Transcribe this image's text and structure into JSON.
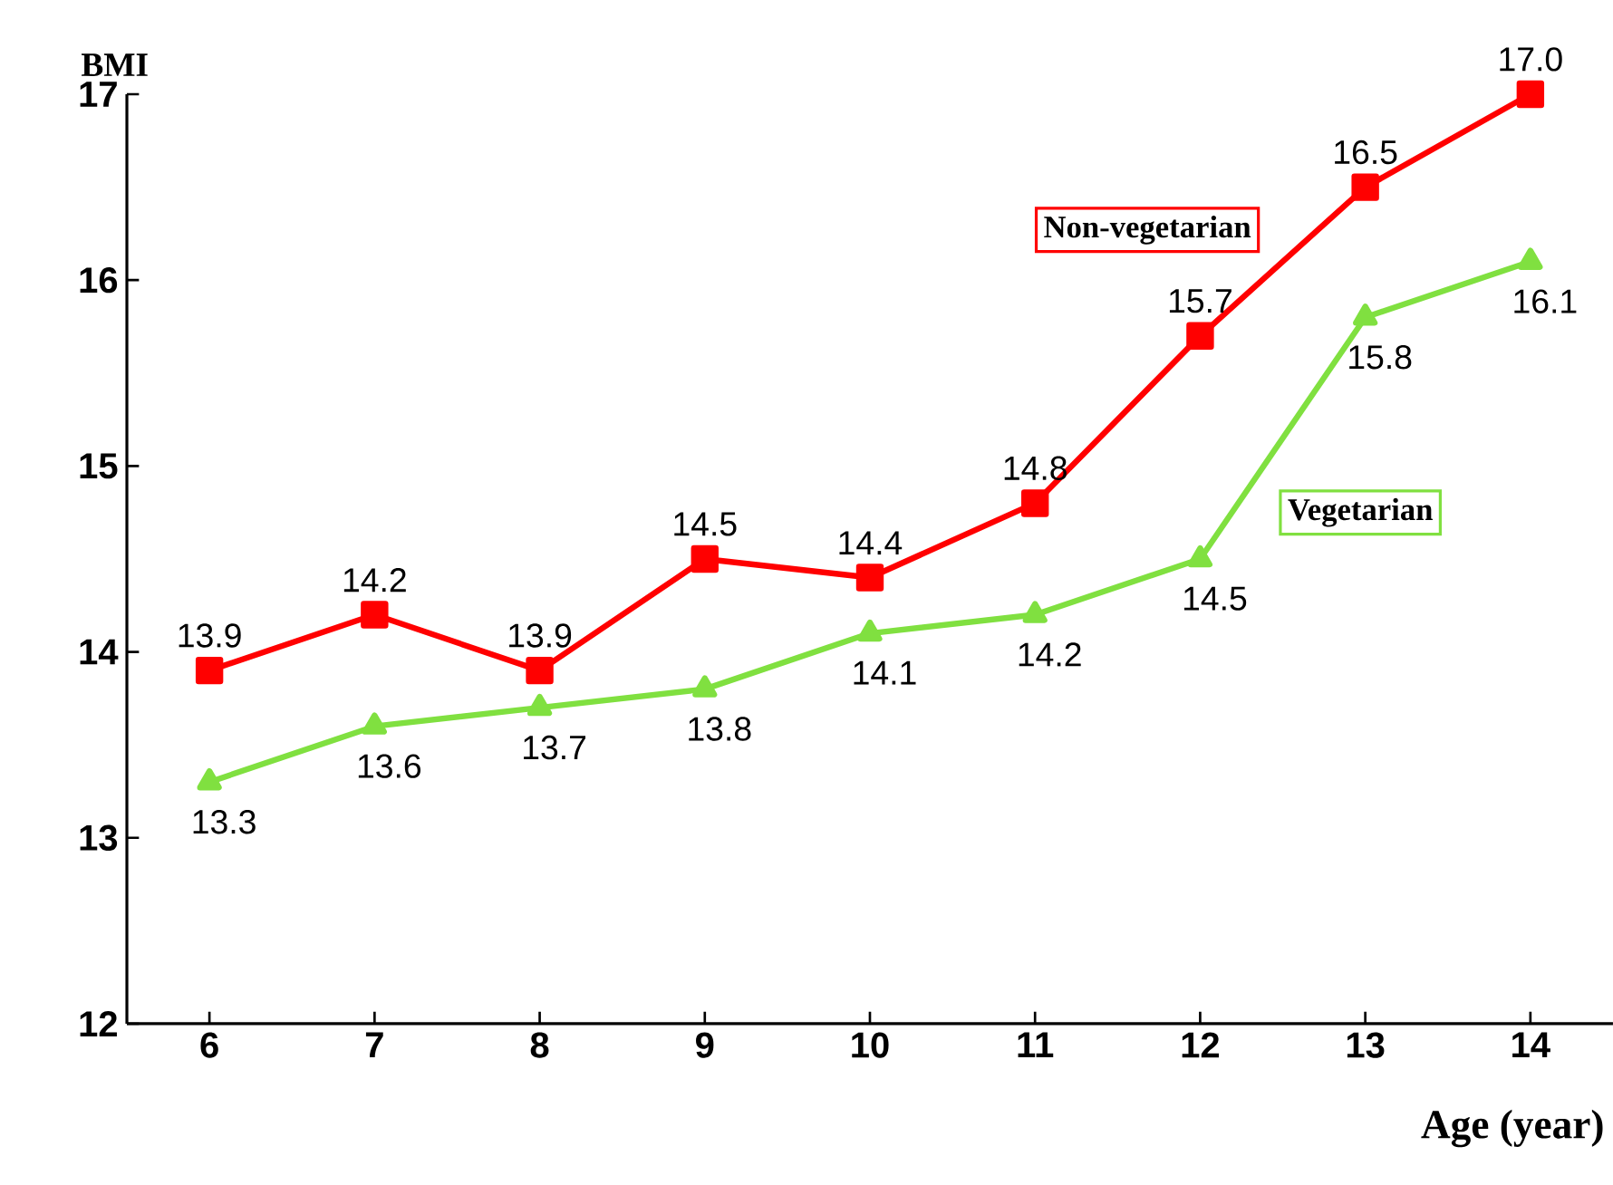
{
  "chart_data": {
    "type": "line",
    "xlabel": "Age (year)",
    "ylabel": "BMI",
    "x": [
      6,
      7,
      8,
      9,
      10,
      11,
      12,
      13,
      14
    ],
    "xlim": [
      5.5,
      14.5
    ],
    "xticks": [
      6,
      7,
      8,
      9,
      10,
      11,
      12,
      13,
      14
    ],
    "ylim": [
      12,
      17
    ],
    "yticks": [
      12,
      13,
      14,
      15,
      16,
      17
    ],
    "grid": false,
    "series": [
      {
        "name": "Non-vegetarian",
        "color": "#ff0000",
        "marker": "square",
        "values": [
          13.9,
          14.2,
          13.9,
          14.5,
          14.4,
          14.8,
          15.7,
          16.5,
          17.0
        ],
        "value_labels": [
          "13.9",
          "14.2",
          "13.9",
          "14.5",
          "14.4",
          "14.8",
          "15.7",
          "16.5",
          "17.0"
        ]
      },
      {
        "name": "Vegetarian",
        "color": "#80e040",
        "marker": "triangle",
        "values": [
          13.3,
          13.6,
          13.7,
          13.8,
          14.1,
          14.2,
          14.5,
          15.8,
          16.1
        ],
        "value_labels": [
          "13.3",
          "13.6",
          "13.7",
          "13.8",
          "14.1",
          "14.2",
          "14.5",
          "15.8",
          "16.1"
        ]
      }
    ]
  }
}
